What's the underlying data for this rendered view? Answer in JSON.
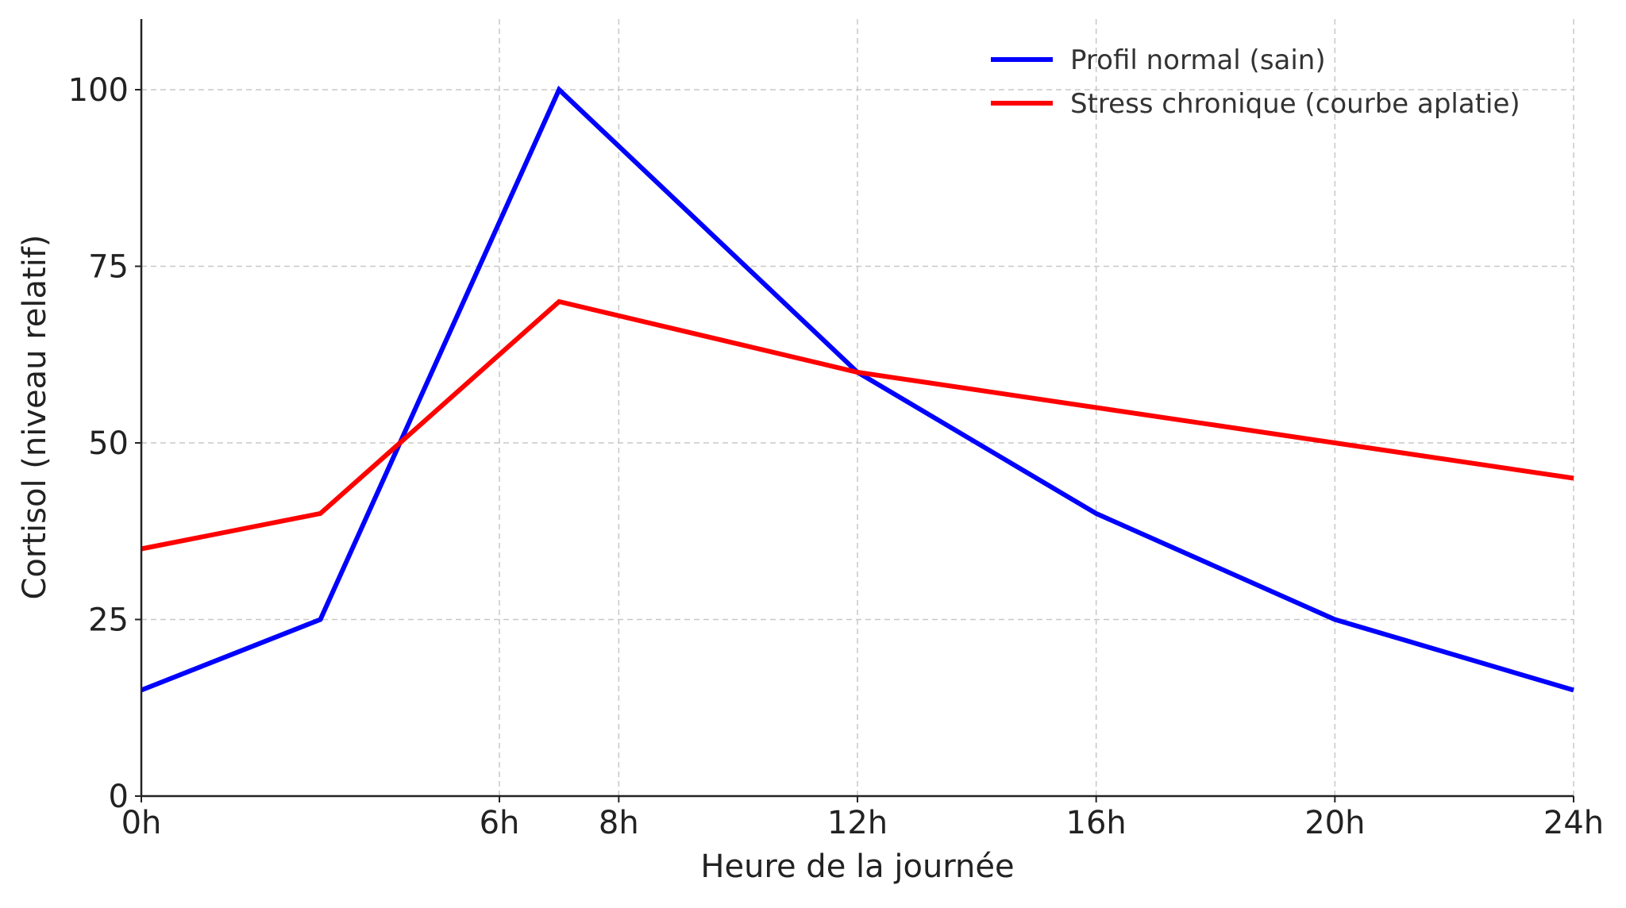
{
  "chart_data": {
    "type": "line",
    "title": "",
    "xlabel": "Heure de la journée",
    "ylabel": "Cortisol (niveau relatif)",
    "xlim": [
      0,
      24
    ],
    "ylim": [
      0,
      110
    ],
    "x_ticks": [
      {
        "value": 0,
        "label": "0h"
      },
      {
        "value": 6,
        "label": "6h"
      },
      {
        "value": 8,
        "label": "8h"
      },
      {
        "value": 12,
        "label": "12h"
      },
      {
        "value": 16,
        "label": "16h"
      },
      {
        "value": 20,
        "label": "20h"
      },
      {
        "value": 24,
        "label": "24h"
      }
    ],
    "y_ticks": [
      {
        "value": 0,
        "label": "0"
      },
      {
        "value": 25,
        "label": "25"
      },
      {
        "value": 50,
        "label": "50"
      },
      {
        "value": 75,
        "label": "75"
      },
      {
        "value": 100,
        "label": "100"
      }
    ],
    "grid": true,
    "legend_position": "top-right",
    "series": [
      {
        "name": "Profil normal (sain)",
        "color": "#0000ff",
        "x": [
          0,
          3,
          7,
          12,
          16,
          20,
          24
        ],
        "y": [
          15,
          25,
          100,
          60,
          40,
          25,
          15
        ]
      },
      {
        "name": "Stress chronique (courbe aplatie)",
        "color": "#ff0000",
        "x": [
          0,
          3,
          7,
          12,
          16,
          20,
          24
        ],
        "y": [
          35,
          40,
          70,
          60,
          55,
          50,
          45
        ]
      }
    ]
  }
}
